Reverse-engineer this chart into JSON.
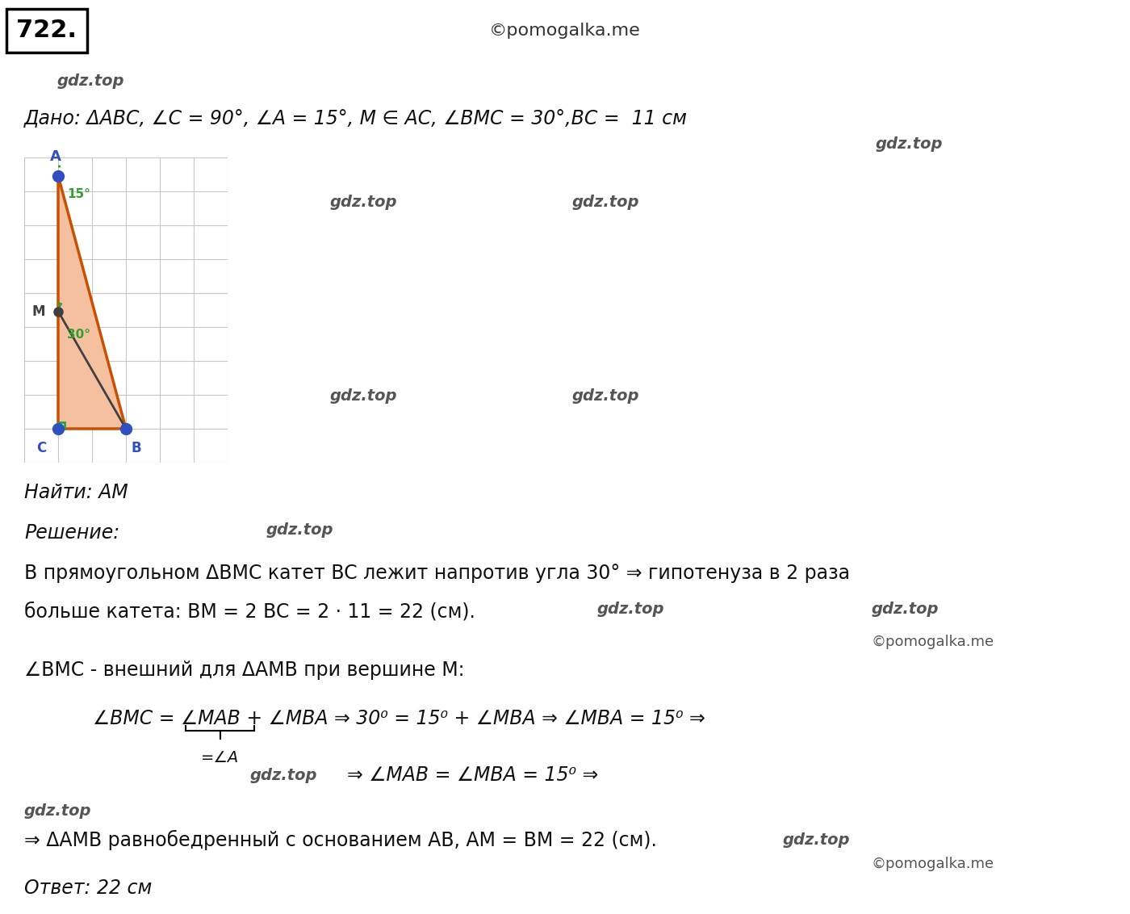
{
  "problem_number": "722.",
  "copyright1": "©pomogalka.me",
  "gdz_top_label": "gdz.top",
  "dado_line": "Дано: ΔABC, ∠C = 90°, ∠A = 15°, M ∈ AC, ∠BMC = 30°,BC =  11 см",
  "naiti_line": "Найти: AM",
  "reshenie_label": "Решение:",
  "solution_line1": "В прямоугольном ΔBMC катет BC лежит напротив угла 30° ⇒ гипотенуза в 2 раза",
  "solution_line2": "больше катета: BM = 2 BC = 2 · 11 = 22 (см).",
  "solution_line3": "∠BMC - внешний для ΔAMB при вершине M:",
  "solution_formula1": "∠BMC = ∠MAB + ∠MBA ⇒ 30⁰ = 15⁰ + ∠MBA ⇒ ∠MBA = 15⁰ ⇒",
  "solution_underbrace": "=∠A",
  "solution_formula2": "⇒ ∠MAB = ∠MBA = 15⁰ ⇒",
  "solution_line4": "⇒ ΔAMB равнобедренный с основанием AB, AM = BM = 22 (см).",
  "otvet_line": "Ответ: 22 см",
  "bg_color": "#ffffff",
  "grid_color": "#c8c8c8",
  "grid_bg": "#ebebeb",
  "triangle_fill": "#f5c0a0",
  "triangle_edge": "#c85000",
  "line_bm_color": "#404040",
  "point_color": "#3050c0",
  "point_m_color": "#404040",
  "angle_arc_color": "#30a030",
  "right_angle_color": "#30a030",
  "label_color": "#404040"
}
